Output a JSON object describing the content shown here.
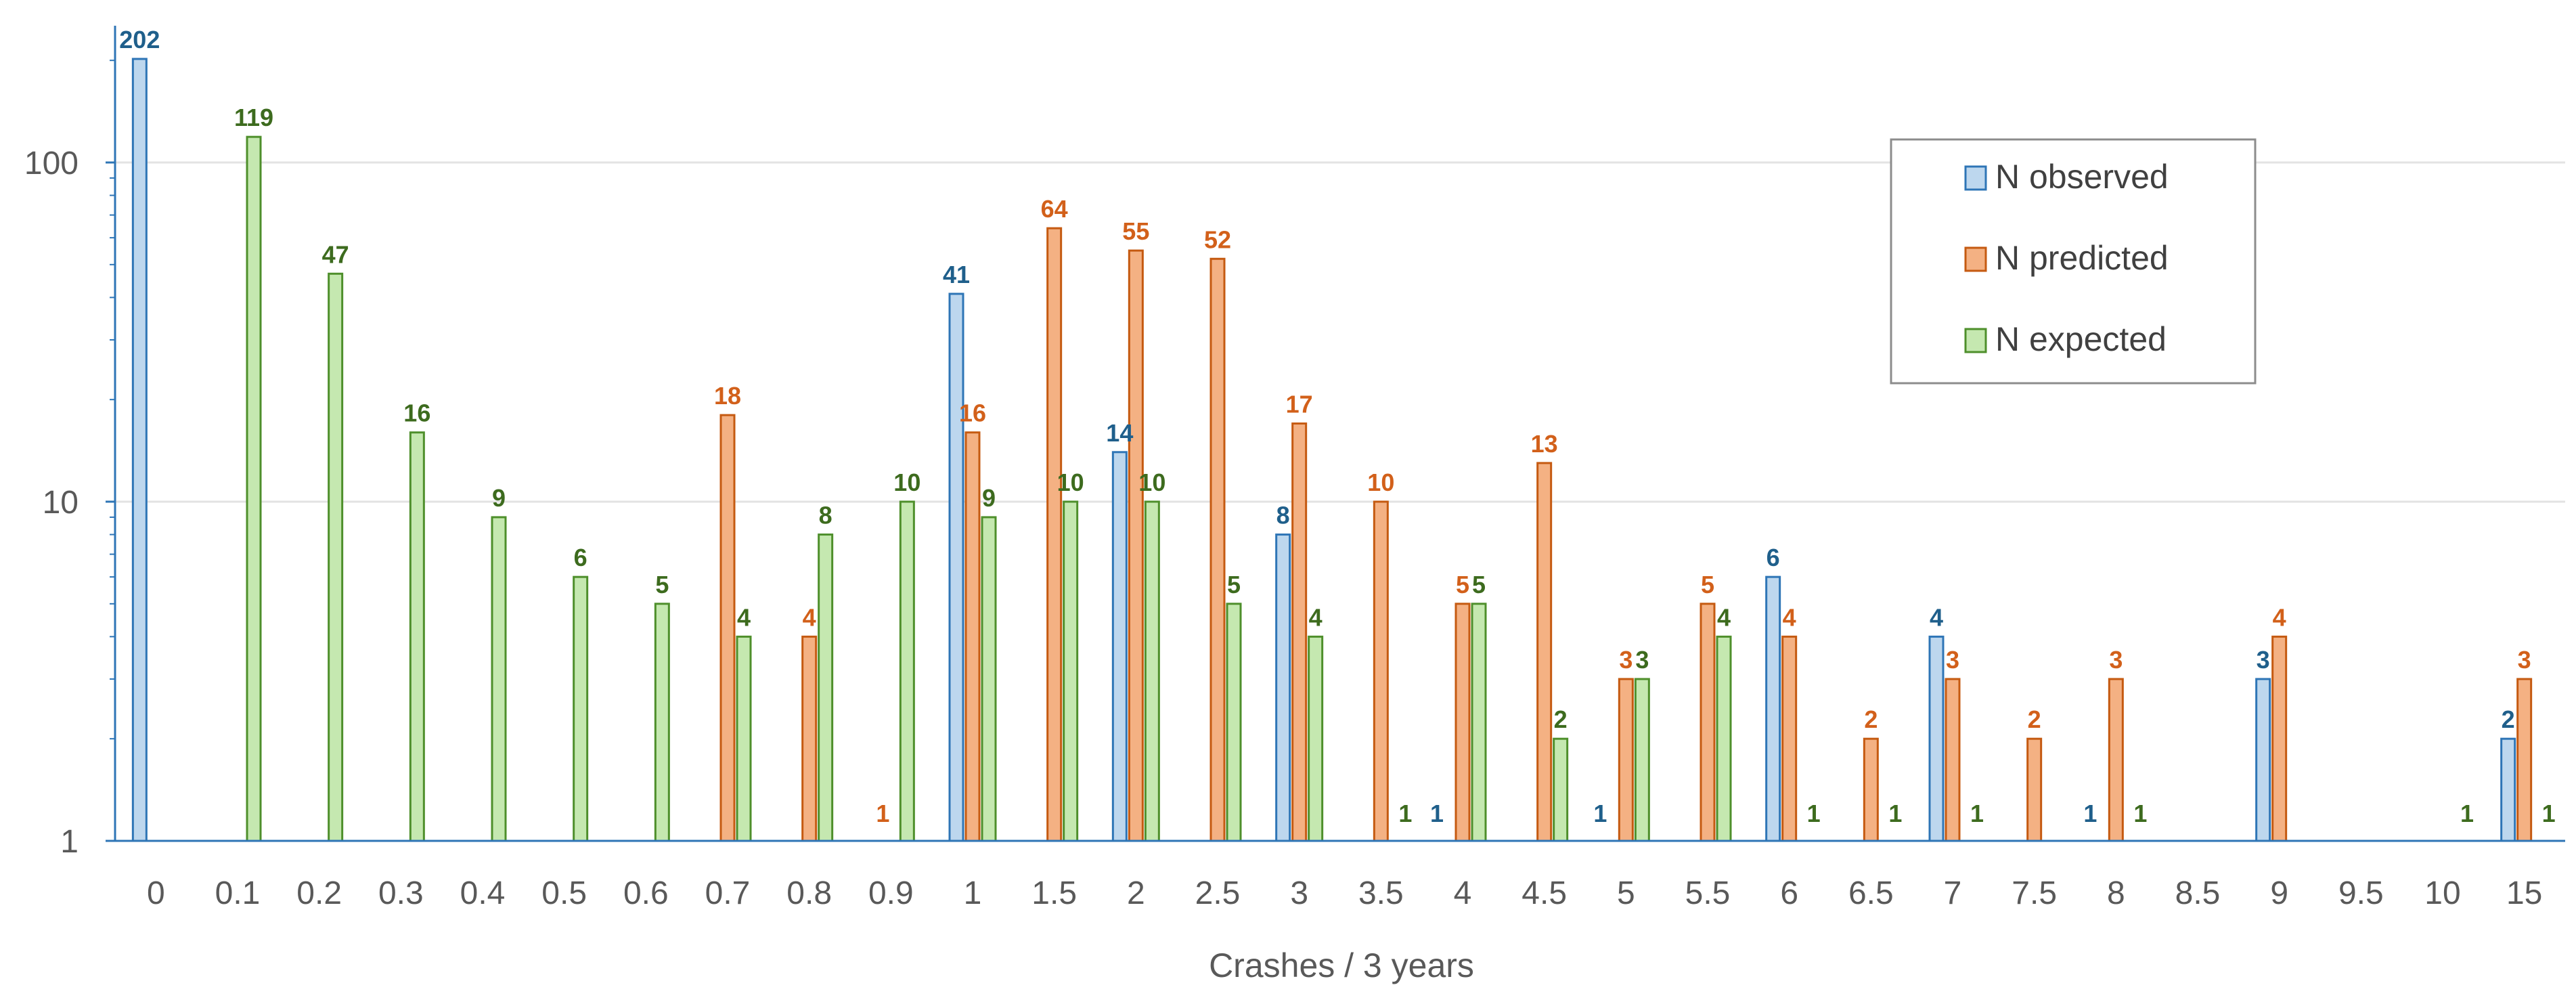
{
  "chart_data": {
    "type": "bar",
    "title": "",
    "xlabel": "Crashes / 3 years",
    "ylabel": "",
    "yscale": "log",
    "ylim": [
      1,
      250
    ],
    "yticks": [
      1,
      10,
      100
    ],
    "yticklabels": [
      "1",
      "10",
      "100"
    ],
    "grid": true,
    "legend_position": "top-right",
    "categories": [
      "0",
      "0.1",
      "0.2",
      "0.3",
      "0.4",
      "0.5",
      "0.6",
      "0.7",
      "0.8",
      "0.9",
      "1",
      "1.5",
      "2",
      "2.5",
      "3",
      "3.5",
      "4",
      "4.5",
      "5",
      "5.5",
      "6",
      "6.5",
      "7",
      "7.5",
      "8",
      "8.5",
      "9",
      "9.5",
      "10",
      "15"
    ],
    "series": [
      {
        "name": "N observed",
        "fill": "#bdd7ee",
        "stroke": "#2e75b6",
        "label_color": "#1f5f8b",
        "values": [
          202,
          null,
          null,
          null,
          null,
          null,
          null,
          null,
          null,
          null,
          41,
          null,
          14,
          null,
          8,
          null,
          1,
          null,
          1,
          null,
          6,
          null,
          4,
          null,
          1,
          null,
          3,
          null,
          null,
          2
        ]
      },
      {
        "name": "N predicted",
        "fill": "#f4b183",
        "stroke": "#c55a11",
        "label_color": "#d2601a",
        "values": [
          null,
          null,
          null,
          null,
          null,
          null,
          null,
          18,
          4,
          1,
          16,
          64,
          55,
          52,
          17,
          10,
          5,
          13,
          3,
          5,
          4,
          2,
          3,
          2,
          3,
          null,
          4,
          null,
          null,
          3
        ]
      },
      {
        "name": "N expected",
        "fill": "#c5e8b0",
        "stroke": "#4e8f2b",
        "label_color": "#3d6b1e",
        "values": [
          null,
          119,
          47,
          16,
          9,
          6,
          5,
          4,
          8,
          10,
          9,
          10,
          10,
          5,
          4,
          1,
          5,
          2,
          3,
          4,
          1,
          1,
          1,
          null,
          1,
          null,
          null,
          null,
          1,
          1
        ]
      }
    ]
  }
}
